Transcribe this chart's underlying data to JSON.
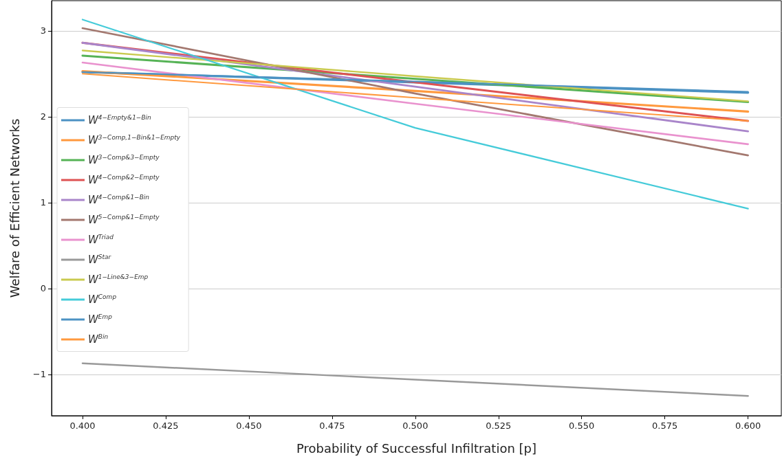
{
  "chart_data": {
    "type": "line",
    "xlabel": "Probability of Successful Infiltration [p]",
    "ylabel": "Welfare of Efficient Networks",
    "x": [
      0.4,
      0.5,
      0.6
    ],
    "xlim": [
      0.3907,
      0.61
    ],
    "xticks": [
      {
        "value": 0.4,
        "label": "0.400"
      },
      {
        "value": 0.425,
        "label": "0.425"
      },
      {
        "value": 0.45,
        "label": "0.450"
      },
      {
        "value": 0.475,
        "label": "0.475"
      },
      {
        "value": 0.5,
        "label": "0.500"
      },
      {
        "value": 0.525,
        "label": "0.525"
      },
      {
        "value": 0.55,
        "label": "0.550"
      },
      {
        "value": 0.575,
        "label": "0.575"
      },
      {
        "value": 0.6,
        "label": "0.600"
      }
    ],
    "ylim": [
      -1.48,
      3.35
    ],
    "yticks": [
      {
        "value": -1,
        "label": "−1"
      },
      0,
      1,
      2,
      3
    ],
    "grid": "y",
    "legend": "center left",
    "marker": "none",
    "line_style": "solid",
    "series": [
      {
        "name": "W$^{4−Empty&1−Bin}$",
        "color": "#4c92c3",
        "values": [
          2.52,
          2.4,
          2.28
        ]
      },
      {
        "name": "W$^{3−Comp,1−Bin&1−Empty}$",
        "color": "#ff993e",
        "values": [
          2.53,
          2.3,
          2.06
        ]
      },
      {
        "name": "W$^{3−Comp&3−Empty}$",
        "color": "#56b356",
        "values": [
          2.71,
          2.44,
          2.17
        ]
      },
      {
        "name": "W$^{4−Comp&2−Empty}$",
        "color": "#de5253",
        "values": [
          2.86,
          2.4,
          1.95
        ]
      },
      {
        "name": "W$^{4−Comp&1−Bin}$",
        "color": "#a985ca",
        "values": [
          2.86,
          2.35,
          1.83
        ]
      },
      {
        "name": "W$^{5−Comp&1−Empty}$",
        "color": "#a3786f",
        "values": [
          3.03,
          2.27,
          1.55
        ]
      },
      {
        "name": "W$^{Triad}$",
        "color": "#e992ce",
        "values": [
          2.63,
          2.15,
          1.68
        ]
      },
      {
        "name": "W$^{Star}$",
        "color": "#999999",
        "values": [
          -0.87,
          -1.06,
          -1.25
        ]
      },
      {
        "name": "W$^{1−Line&3−Emp}$",
        "color": "#c9ca4e",
        "values": [
          2.77,
          2.47,
          2.18
        ]
      },
      {
        "name": "W$^{Comp}$",
        "color": "#45cbd9",
        "values": [
          3.13,
          1.87,
          0.93
        ]
      },
      {
        "name": "W$^{Emp}$",
        "color": "#4c92c3",
        "values": [
          2.52,
          2.41,
          2.29
        ]
      },
      {
        "name": "W$^{Bin}$",
        "color": "#ff993e",
        "values": [
          2.5,
          2.22,
          1.95
        ]
      }
    ]
  }
}
